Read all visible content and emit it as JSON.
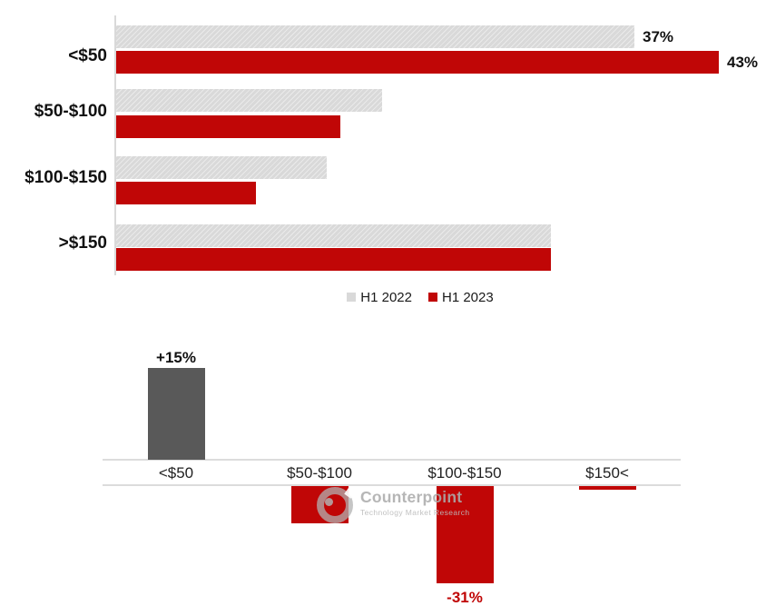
{
  "page": {
    "background": "#ffffff"
  },
  "colors": {
    "h1_2022_gray": "#D9D9D9",
    "h1_2023_red": "#C00606",
    "positive_change_gray": "#595959",
    "negative_label_red": "#C00606",
    "axis_line_gray": "#DCDCDC",
    "label_black": "#111111",
    "watermark_gray": "#ACACAC"
  },
  "watermark": {
    "brand": "Counterpoint",
    "tagline": "Technology Market Research",
    "logo_icon": "counterpoint-ring-logo"
  },
  "chart_data": [
    {
      "type": "bar",
      "orientation": "horizontal",
      "title": "",
      "categories": [
        "<$50",
        "$50-$100",
        "$100-$150",
        ">$150"
      ],
      "series": [
        {
          "name": "H1 2022",
          "color": "#D9D9D9",
          "values": [
            37,
            19,
            15,
            31
          ]
        },
        {
          "name": "H1 2023",
          "color": "#C00606",
          "values": [
            43,
            16,
            10,
            31
          ]
        }
      ],
      "data_labels": [
        {
          "category": "<$50",
          "series": "H1 2022",
          "label": "37%"
        },
        {
          "category": "<$50",
          "series": "H1 2023",
          "label": "43%"
        }
      ],
      "xlim": [
        0,
        45
      ],
      "grid": false,
      "legend_position": "bottom-center",
      "note": "Only the <$50 bars carry data labels; other values estimated from bar lengths."
    },
    {
      "type": "bar",
      "orientation": "vertical",
      "title": "",
      "categories": [
        "<$50",
        "$50-$100",
        "$100-$150",
        "$150<"
      ],
      "values": [
        15,
        -12,
        -31,
        -1
      ],
      "bar_colors": [
        "#595959",
        "#C00606",
        "#C00606",
        "#C00606"
      ],
      "data_labels": [
        "+15%",
        "",
        "-31%",
        ""
      ],
      "ylim": [
        -35,
        20
      ],
      "grid": false,
      "note": "YoY change; only +15% and -31% are labeled, remaining values estimated from bar heights."
    }
  ]
}
